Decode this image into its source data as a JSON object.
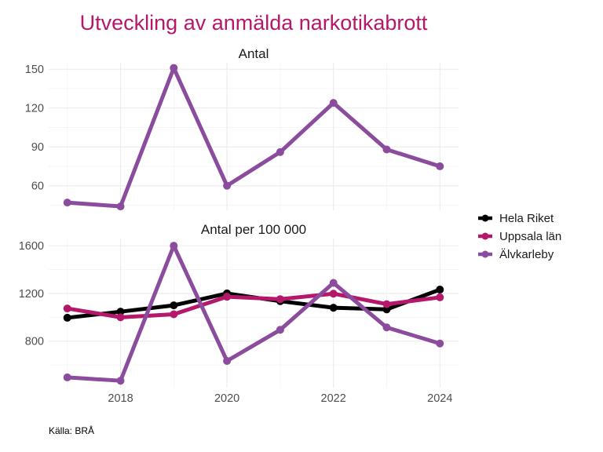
{
  "chart_data": {
    "type": "line",
    "title": "Utveckling av anmälda narkotikabrott",
    "caption": "Källa: BRÅ",
    "x": [
      2017,
      2018,
      2019,
      2020,
      2021,
      2022,
      2023,
      2024
    ],
    "x_ticks": [
      2018,
      2020,
      2022,
      2024
    ],
    "xlim": [
      2016.65,
      2024.35
    ],
    "grid": true,
    "legend": {
      "position": "right",
      "entries": [
        "Hela Riket",
        "Uppsala län",
        "Älvkarleby"
      ]
    },
    "colors": {
      "Hela Riket": "#000000",
      "Uppsala län": "#b5186b",
      "Älvkarleby": "#8b4c9e"
    },
    "panels": [
      {
        "title": "Antal",
        "ylim": [
          41,
          155
        ],
        "y_ticks": [
          60,
          90,
          120,
          150
        ],
        "y_minor": [
          45,
          75,
          105,
          135
        ],
        "series": [
          {
            "name": "Älvkarleby",
            "values": [
              47,
              44,
              151,
              60,
              86,
              124,
              88,
              75
            ]
          }
        ]
      },
      {
        "title": "Antal per 100 000",
        "ylim": [
          410,
          1660
        ],
        "y_ticks": [
          800,
          1200,
          1600
        ],
        "y_minor": [
          600,
          1000,
          1400
        ],
        "series": [
          {
            "name": "Hela Riket",
            "values": [
              996,
              1047,
              1100,
              1200,
              1135,
              1080,
              1066,
              1232
            ]
          },
          {
            "name": "Uppsala län",
            "values": [
              1074,
              1000,
              1025,
              1172,
              1152,
              1198,
              1110,
              1167
            ]
          },
          {
            "name": "Älvkarleby",
            "values": [
              496,
              468,
              1600,
              634,
              895,
              1288,
              915,
              780
            ]
          }
        ]
      }
    ]
  }
}
